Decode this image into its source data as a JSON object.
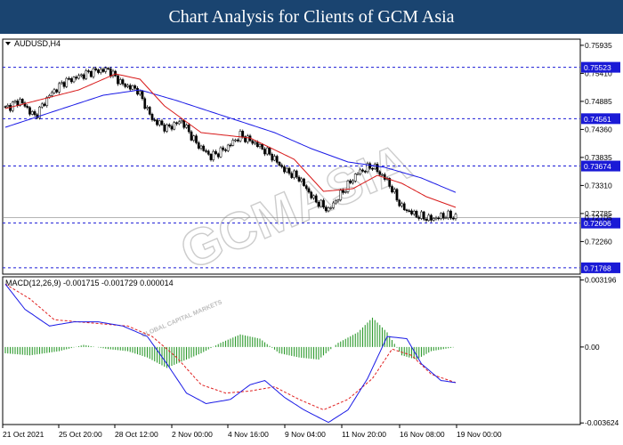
{
  "header": {
    "title": "Chart Analysis for Clients of GCM Asia",
    "bg": "#1a4470"
  },
  "watermark": {
    "main": "GCMASIA",
    "sub": "GLOBAL CAPITAL MARKETS"
  },
  "chart_data": [
    {
      "type": "candlestick",
      "symbol": "AUDUSD,H4",
      "ylim": [
        0.7165,
        0.7605
      ],
      "y_ticks": [
        "0.75935",
        "0.75410",
        "0.74885",
        "0.74360",
        "0.73835",
        "0.73310",
        "0.72785",
        "0.72260"
      ],
      "x_ticks": [
        "21 Oct 2021",
        "25 Oct 20:00",
        "28 Oct 12:00",
        "2 Nov 00:00",
        "4 Nov 16:00",
        "9 Nov 04:00",
        "11 Nov 20:00",
        "16 Nov 08:00",
        "19 Nov 00:00"
      ],
      "levels": [
        {
          "label": "0.75523",
          "value": 0.75523
        },
        {
          "label": "0.74561",
          "value": 0.74561
        },
        {
          "label": "0.73674",
          "value": 0.73674
        },
        {
          "label": "0.72606",
          "value": 0.72606
        },
        {
          "label": "0.71768",
          "value": 0.71768
        }
      ],
      "price_label": "0.72705",
      "price_anchors": [
        [
          0,
          0.7475
        ],
        [
          6,
          0.749
        ],
        [
          12,
          0.746
        ],
        [
          18,
          0.75
        ],
        [
          24,
          0.7525
        ],
        [
          30,
          0.7535
        ],
        [
          36,
          0.7545
        ],
        [
          42,
          0.7548
        ],
        [
          48,
          0.752
        ],
        [
          54,
          0.751
        ],
        [
          60,
          0.7455
        ],
        [
          66,
          0.7438
        ],
        [
          72,
          0.7452
        ],
        [
          78,
          0.741
        ],
        [
          84,
          0.7385
        ],
        [
          90,
          0.74
        ],
        [
          96,
          0.7425
        ],
        [
          102,
          0.741
        ],
        [
          108,
          0.739
        ],
        [
          114,
          0.736
        ],
        [
          120,
          0.7345
        ],
        [
          126,
          0.7305
        ],
        [
          132,
          0.7285
        ],
        [
          138,
          0.732
        ],
        [
          144,
          0.7355
        ],
        [
          150,
          0.7368
        ],
        [
          156,
          0.734
        ],
        [
          162,
          0.729
        ],
        [
          168,
          0.7275
        ],
        [
          174,
          0.7268
        ],
        [
          180,
          0.7275
        ],
        [
          184,
          0.7272
        ]
      ],
      "ma_red": [
        [
          0,
          0.7475
        ],
        [
          30,
          0.751
        ],
        [
          45,
          0.754
        ],
        [
          55,
          0.753
        ],
        [
          65,
          0.748
        ],
        [
          80,
          0.743
        ],
        [
          100,
          0.742
        ],
        [
          118,
          0.738
        ],
        [
          130,
          0.732
        ],
        [
          142,
          0.7325
        ],
        [
          152,
          0.735
        ],
        [
          162,
          0.7335
        ],
        [
          172,
          0.731
        ],
        [
          184,
          0.729
        ]
      ],
      "ma_blue": [
        [
          0,
          0.744
        ],
        [
          20,
          0.747
        ],
        [
          40,
          0.75
        ],
        [
          55,
          0.751
        ],
        [
          70,
          0.749
        ],
        [
          90,
          0.746
        ],
        [
          110,
          0.743
        ],
        [
          125,
          0.74
        ],
        [
          140,
          0.7375
        ],
        [
          155,
          0.7365
        ],
        [
          170,
          0.7345
        ],
        [
          184,
          0.7318
        ]
      ]
    },
    {
      "type": "macd",
      "label": "MACD(12,26,9) -0.001715 -0.001729 0.000014",
      "ylim": [
        -0.0037,
        0.00335
      ],
      "y_ticks": [
        "0.003196",
        "0.00",
        "-0.003624"
      ],
      "macd_line": [
        [
          0,
          0.003
        ],
        [
          8,
          0.0018
        ],
        [
          18,
          0.001
        ],
        [
          28,
          0.0012
        ],
        [
          38,
          0.0012
        ],
        [
          48,
          0.001
        ],
        [
          58,
          0.0005
        ],
        [
          66,
          -0.0008
        ],
        [
          74,
          -0.0022
        ],
        [
          82,
          -0.0027
        ],
        [
          92,
          -0.0025
        ],
        [
          100,
          -0.0018
        ],
        [
          106,
          -0.0016
        ],
        [
          114,
          -0.0024
        ],
        [
          122,
          -0.003
        ],
        [
          132,
          -0.0036
        ],
        [
          140,
          -0.003
        ],
        [
          148,
          -0.0015
        ],
        [
          156,
          0.0005
        ],
        [
          164,
          0.0004
        ],
        [
          170,
          -0.0008
        ],
        [
          178,
          -0.0016
        ],
        [
          184,
          -0.0017
        ]
      ],
      "signal_line": [
        [
          0,
          0.003
        ],
        [
          10,
          0.0023
        ],
        [
          20,
          0.0013
        ],
        [
          30,
          0.0012
        ],
        [
          40,
          0.0011
        ],
        [
          50,
          0.001
        ],
        [
          60,
          0.0005
        ],
        [
          70,
          -0.0005
        ],
        [
          80,
          -0.0018
        ],
        [
          90,
          -0.0022
        ],
        [
          100,
          -0.0021
        ],
        [
          110,
          -0.0019
        ],
        [
          120,
          -0.0025
        ],
        [
          130,
          -0.003
        ],
        [
          140,
          -0.0025
        ],
        [
          150,
          -0.0015
        ],
        [
          158,
          -0.0001
        ],
        [
          166,
          -0.0004
        ],
        [
          174,
          -0.0013
        ],
        [
          184,
          -0.0017
        ]
      ],
      "hist_anchors": [
        [
          0,
          -0.0003
        ],
        [
          10,
          -0.0004
        ],
        [
          22,
          -0.0002
        ],
        [
          32,
          0.0001
        ],
        [
          42,
          -0.0001
        ],
        [
          50,
          -0.0002
        ],
        [
          58,
          -0.0005
        ],
        [
          66,
          -0.001
        ],
        [
          74,
          -0.0006
        ],
        [
          80,
          -0.0003
        ],
        [
          88,
          0.0002
        ],
        [
          96,
          0.0006
        ],
        [
          104,
          0.0004
        ],
        [
          112,
          -0.0003
        ],
        [
          120,
          -0.0005
        ],
        [
          128,
          -0.0006
        ],
        [
          136,
          0.0002
        ],
        [
          144,
          0.0007
        ],
        [
          150,
          0.0014
        ],
        [
          156,
          0.0007
        ],
        [
          162,
          -0.0004
        ],
        [
          168,
          -0.0006
        ],
        [
          174,
          -0.0002
        ],
        [
          184,
          0.0
        ]
      ]
    }
  ]
}
